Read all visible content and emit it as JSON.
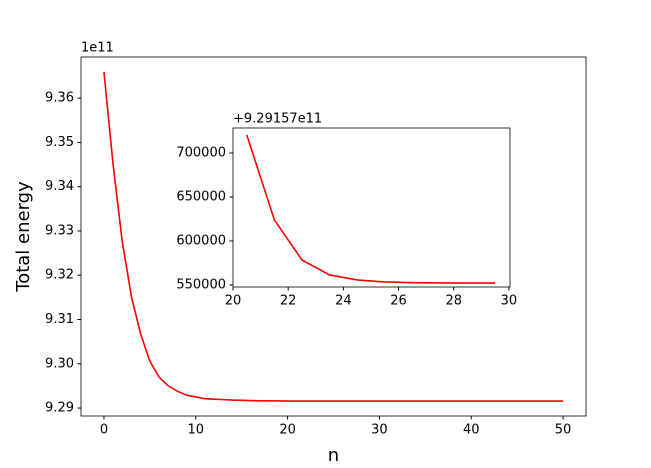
{
  "chart_data": [
    {
      "type": "line",
      "xlabel": "n",
      "ylabel": "Total energy",
      "offset_text": "1e11",
      "x": [
        0,
        1,
        2,
        3,
        4,
        5,
        6,
        7,
        8,
        9,
        10,
        11,
        12,
        13,
        14,
        15,
        16,
        17,
        18,
        19,
        20,
        21,
        22,
        23,
        24,
        25,
        26,
        27,
        28,
        29,
        30,
        31,
        32,
        33,
        34,
        35,
        36,
        37,
        38,
        39,
        40,
        41,
        42,
        43,
        44,
        45,
        46,
        47,
        48,
        49,
        50
      ],
      "series": [
        {
          "color": "#ff0000",
          "values": [
            9.3659,
            9.3449,
            9.3275,
            9.3151,
            9.3067,
            9.3006,
            9.297,
            9.295,
            9.2938,
            9.2929,
            9.2925,
            9.2921,
            9.292,
            9.2919,
            9.2918,
            9.29175,
            9.29168,
            9.29164,
            9.29162,
            9.2916,
            9.29158,
            9.29158,
            9.29158,
            9.29158,
            9.29158,
            9.29158,
            9.29158,
            9.29158,
            9.29158,
            9.29158,
            9.29158,
            9.29158,
            9.29158,
            9.29158,
            9.29158,
            9.29158,
            9.29158,
            9.29158,
            9.29158,
            9.29158,
            9.29158,
            9.29158,
            9.29158,
            9.29158,
            9.29158,
            9.29158,
            9.29158,
            9.29158,
            9.29158,
            9.29158,
            9.29158
          ]
        }
      ],
      "xlim": [
        -2.5,
        52.5
      ],
      "ylim": [
        9.2882,
        9.3693
      ],
      "xticks": [
        0,
        10,
        20,
        30,
        40,
        50
      ],
      "yticks": [
        9.29,
        {
          "value": 9.3,
          "label": "9.30"
        },
        9.31,
        9.32,
        9.33,
        9.34,
        9.35,
        9.36
      ]
    },
    {
      "type": "line",
      "offset_text": "+9.29157e11",
      "x": [
        20.5,
        21.5,
        22.5,
        23.5,
        24.5,
        25.5,
        26.5,
        27.5,
        28.5,
        29.5
      ],
      "series": [
        {
          "color": "#ff0000",
          "values": [
            720450,
            623900,
            578400,
            561400,
            555700,
            553400,
            552600,
            552300,
            552200,
            552200
          ]
        }
      ],
      "xlim": [
        20,
        30.04
      ],
      "ylim": [
        547700,
        728400
      ],
      "xticks": [
        20,
        22,
        24,
        26,
        28,
        30
      ],
      "yticks": [
        550000,
        600000,
        650000,
        700000
      ]
    }
  ]
}
